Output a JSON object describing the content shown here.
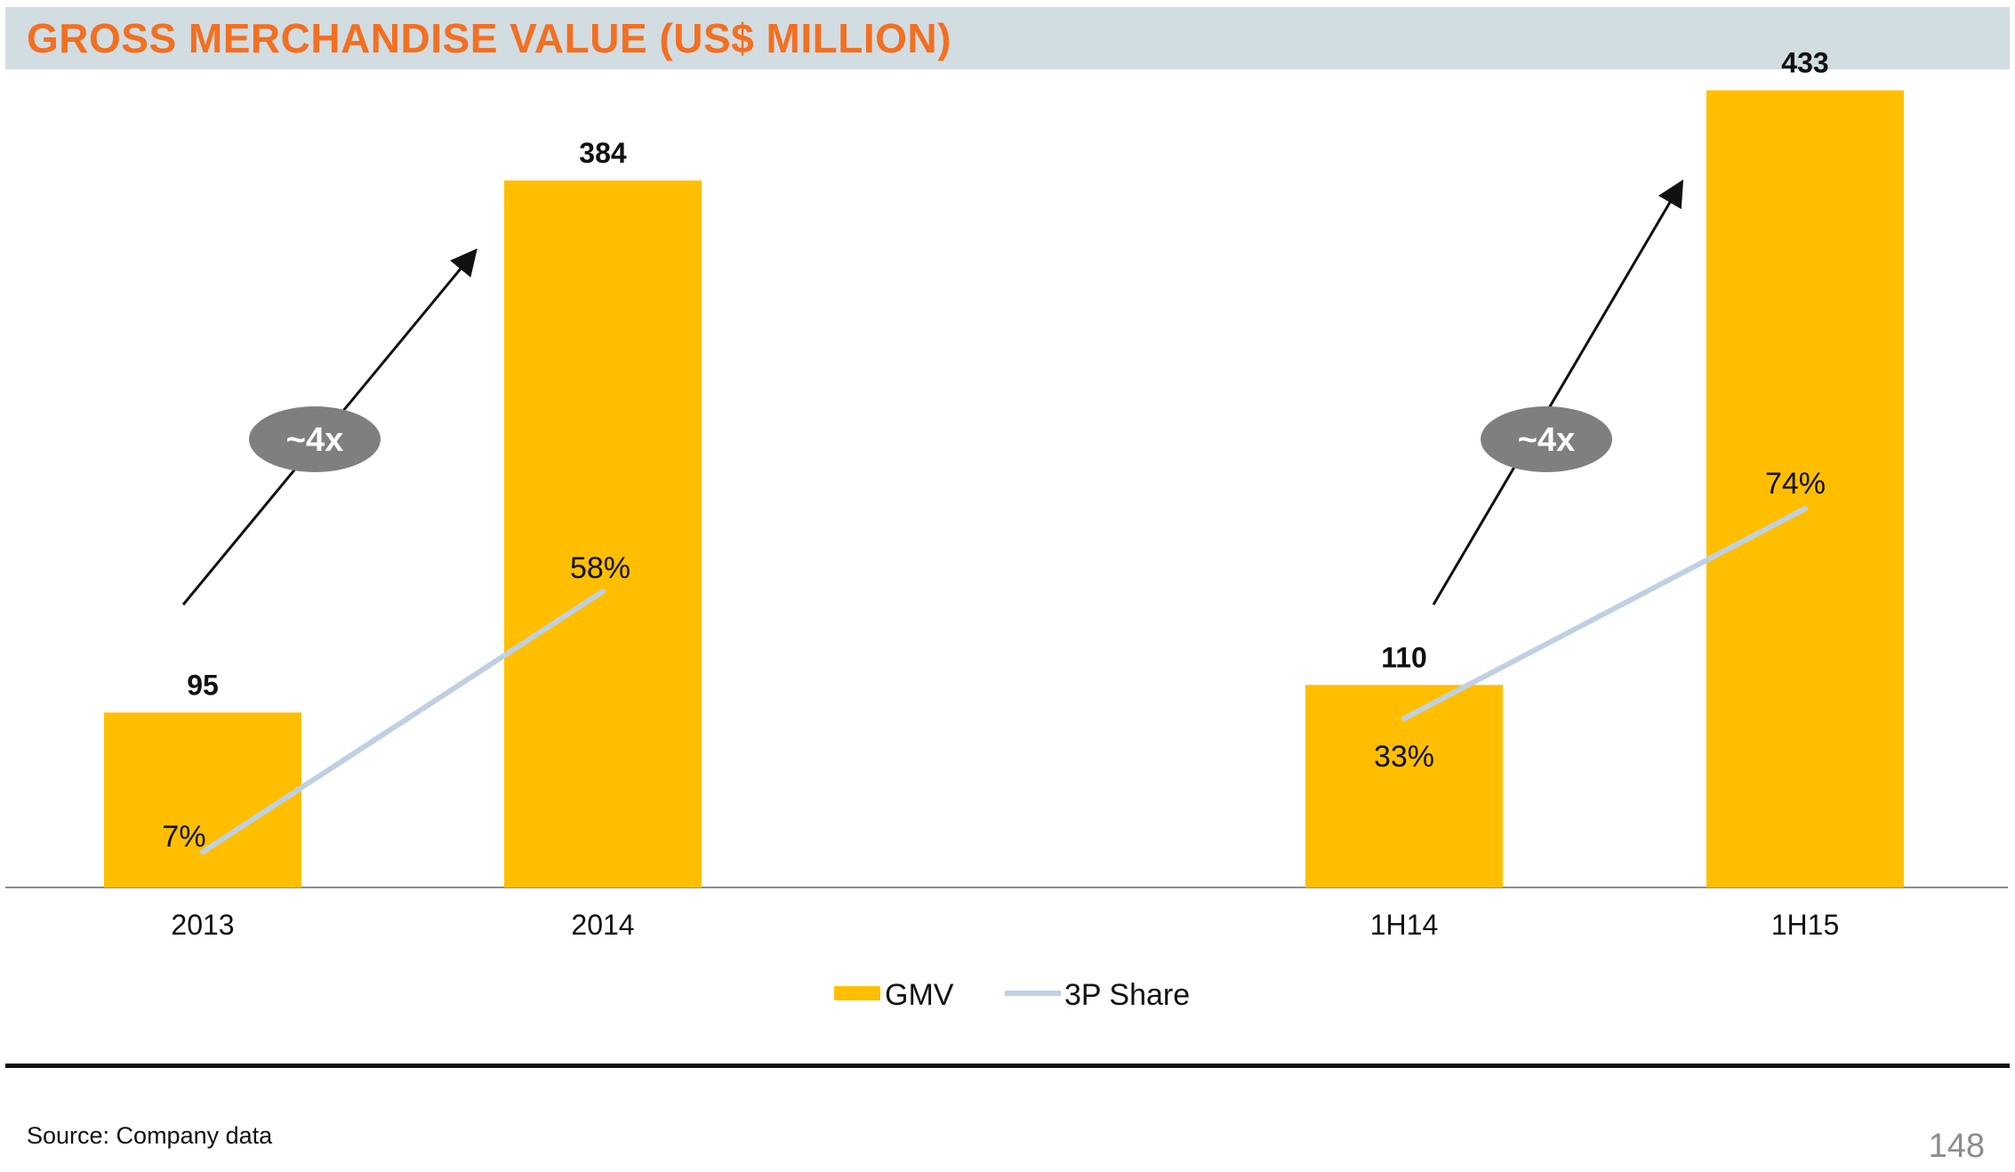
{
  "header": {
    "title": "GROSS MERCHANDISE VALUE (US$ MILLION)"
  },
  "footer": {
    "source": "Source: Company data",
    "page_number": "148"
  },
  "colors": {
    "title": "#f36f21",
    "title_bar": "#d2dde2",
    "bar": "#ffbf00",
    "line": "#bfd0e3",
    "badge": "#7f7f7f",
    "badge_text": "#ffffff"
  },
  "chart_data": {
    "type": "bar",
    "categories": [
      "2013",
      "2014",
      "1H14",
      "1H15"
    ],
    "series": [
      {
        "name": "GMV",
        "type": "bar",
        "values": [
          95,
          384,
          110,
          433
        ],
        "labels": [
          "95",
          "384",
          "110",
          "433"
        ]
      },
      {
        "name": "3P Share",
        "type": "line",
        "values": [
          7,
          58,
          33,
          74
        ],
        "labels": [
          "7%",
          "58%",
          "33%",
          "74%"
        ],
        "groups": [
          [
            0,
            1
          ],
          [
            2,
            3
          ]
        ]
      }
    ],
    "annotations": [
      {
        "text": "~4x",
        "from": "2013",
        "to": "2014"
      },
      {
        "text": "~4x",
        "from": "1H14",
        "to": "1H15"
      }
    ],
    "legend": {
      "position": "bottom-center"
    },
    "grid": false
  }
}
